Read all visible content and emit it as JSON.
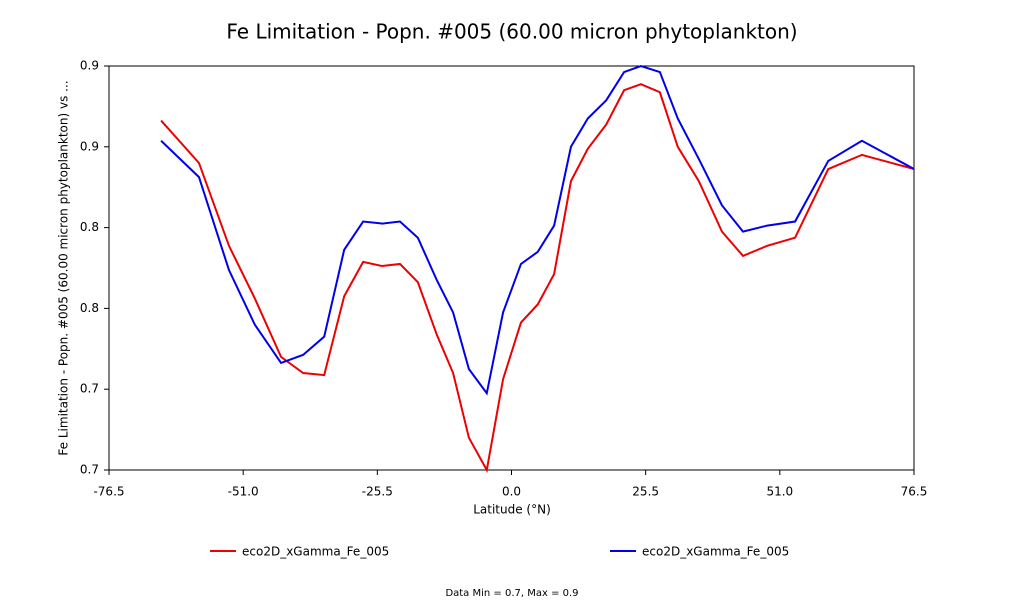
{
  "chart_data": {
    "type": "line",
    "title": "Fe Limitation - Popn. #005 (60.00 micron phytoplankton)",
    "x_label": "Latitude (°N)",
    "y_label": "Fe Limitation - Popn. #005 (60.00 micron phytoplankton) vs ...",
    "footer": "Data Min = 0.7, Max = 0.9",
    "x": [
      -66.6,
      -59.4,
      -53.7,
      -48.8,
      -43.8,
      -39.6,
      -35.6,
      -31.8,
      -28.2,
      -24.6,
      -21.2,
      -17.8,
      -14.2,
      -11.1,
      -8.1,
      -4.7,
      -1.6,
      1.8,
      5.0,
      8.1,
      11.3,
      14.5,
      18.0,
      21.4,
      24.6,
      28.2,
      31.6,
      35.6,
      40.0,
      44.0,
      48.6,
      53.9,
      60.2,
      66.6,
      76.5
    ],
    "series": [
      {
        "name": "eco2D_xGamma_Fe_005",
        "color": "#ee0000",
        "values": [
          0.873,
          0.852,
          0.811,
          0.785,
          0.756,
          0.748,
          0.747,
          0.786,
          0.803,
          0.801,
          0.802,
          0.793,
          0.767,
          0.748,
          0.716,
          0.7,
          0.745,
          0.773,
          0.782,
          0.797,
          0.843,
          0.859,
          0.871,
          0.888,
          0.891,
          0.887,
          0.86,
          0.843,
          0.818,
          0.806,
          0.811,
          0.815,
          0.849,
          0.856,
          0.849
        ]
      },
      {
        "name": "eco2D_xGamma_Fe_005",
        "color": "#0000ee",
        "values": [
          0.863,
          0.845,
          0.799,
          0.772,
          0.753,
          0.757,
          0.766,
          0.809,
          0.823,
          0.822,
          0.823,
          0.815,
          0.794,
          0.778,
          0.75,
          0.738,
          0.778,
          0.802,
          0.808,
          0.821,
          0.86,
          0.874,
          0.883,
          0.897,
          0.9,
          0.897,
          0.874,
          0.854,
          0.831,
          0.818,
          0.821,
          0.823,
          0.853,
          0.863,
          0.849
        ]
      }
    ],
    "xlim": [
      -76.5,
      76.5
    ],
    "xticks": [
      {
        "value": -76.5,
        "label": "-76.5"
      },
      {
        "value": -51,
        "label": "-51.0"
      },
      {
        "value": -25.5,
        "label": "-25.5"
      },
      {
        "value": 0,
        "label": "0.0"
      },
      {
        "value": 25.5,
        "label": "25.5"
      },
      {
        "value": 51,
        "label": "51.0"
      },
      {
        "value": 76.5,
        "label": "76.5"
      }
    ],
    "ylim": [
      0.7,
      0.9
    ],
    "yticks": [
      0.7,
      {
        "value": 0.74,
        "label": "0.7"
      },
      {
        "value": 0.78,
        "label": "0.8"
      },
      {
        "value": 0.82,
        "label": "0.8"
      },
      {
        "value": 0.86,
        "label": "0.9"
      },
      0.9
    ],
    "grid": false
  }
}
